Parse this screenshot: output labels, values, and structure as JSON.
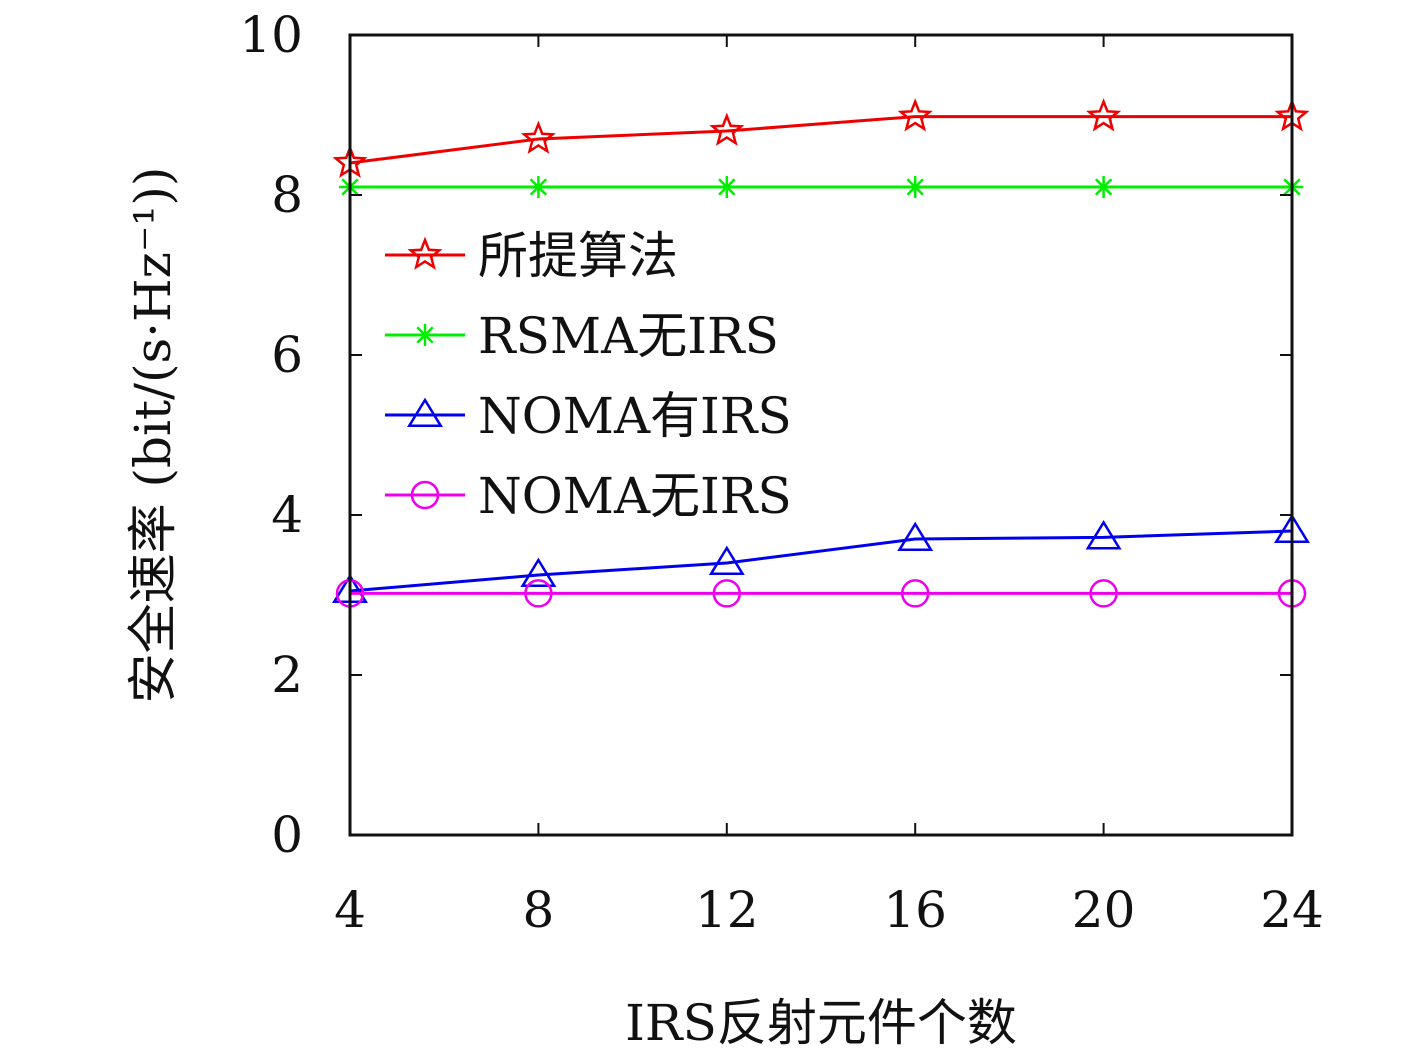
{
  "chart_data": {
    "type": "line",
    "xlabel": "IRS反射元件个数",
    "ylabel": "安全速率 (bit/(s·Hz⁻¹))",
    "x": [
      4,
      8,
      12,
      16,
      20,
      24
    ],
    "xlim": [
      4,
      24
    ],
    "ylim": [
      0,
      10
    ],
    "xticks": [
      "4",
      "8",
      "12",
      "16",
      "20",
      "24"
    ],
    "yticks": [
      "0",
      "2",
      "4",
      "6",
      "8",
      "10"
    ],
    "grid": false,
    "legend_position": "center-left",
    "series": [
      {
        "name": "所提算法",
        "color": "#ee0000",
        "marker": "star",
        "values": [
          8.4,
          8.7,
          8.8,
          8.98,
          8.98,
          8.98
        ]
      },
      {
        "name": "RSMA无IRS",
        "color": "#00ee00",
        "marker": "asterisk",
        "values": [
          8.1,
          8.1,
          8.1,
          8.1,
          8.1,
          8.1
        ]
      },
      {
        "name": "NOMA有IRS",
        "color": "#0000ee",
        "marker": "triangle",
        "values": [
          3.05,
          3.25,
          3.4,
          3.7,
          3.72,
          3.8
        ]
      },
      {
        "name": "NOMA无IRS",
        "color": "#ee00ee",
        "marker": "circle",
        "values": [
          3.02,
          3.02,
          3.02,
          3.02,
          3.02,
          3.02
        ]
      }
    ]
  }
}
